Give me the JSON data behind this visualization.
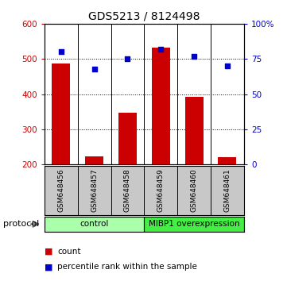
{
  "title": "GDS5213 / 8124498",
  "samples": [
    "GSM648456",
    "GSM648457",
    "GSM648458",
    "GSM648459",
    "GSM648460",
    "GSM648461"
  ],
  "counts": [
    487,
    222,
    347,
    533,
    392,
    220
  ],
  "percentile_ranks": [
    80,
    68,
    75,
    82,
    77,
    70
  ],
  "count_base": 200,
  "ylim_left": [
    200,
    600
  ],
  "ylim_right": [
    0,
    100
  ],
  "yticks_left": [
    200,
    300,
    400,
    500,
    600
  ],
  "yticks_right": [
    0,
    25,
    50,
    75,
    100
  ],
  "ytick_labels_right": [
    "0",
    "25",
    "50",
    "75",
    "100%"
  ],
  "bar_color": "#cc0000",
  "dot_color": "#0000cc",
  "bar_width": 0.55,
  "groups": [
    {
      "label": "control",
      "color": "#aaffaa",
      "start": 0,
      "end": 3
    },
    {
      "label": "MIBP1 overexpression",
      "color": "#44ee44",
      "start": 3,
      "end": 6
    }
  ],
  "protocol_label": "protocol",
  "legend_count_label": "count",
  "legend_pct_label": "percentile rank within the sample",
  "background_color": "#ffffff",
  "plot_bg_color": "#ffffff",
  "sample_bg_color": "#c8c8c8",
  "title_fontsize": 10,
  "tick_fontsize": 7.5,
  "sample_fontsize": 6.5,
  "group_fontsize": 7.5,
  "legend_fontsize": 7.5
}
